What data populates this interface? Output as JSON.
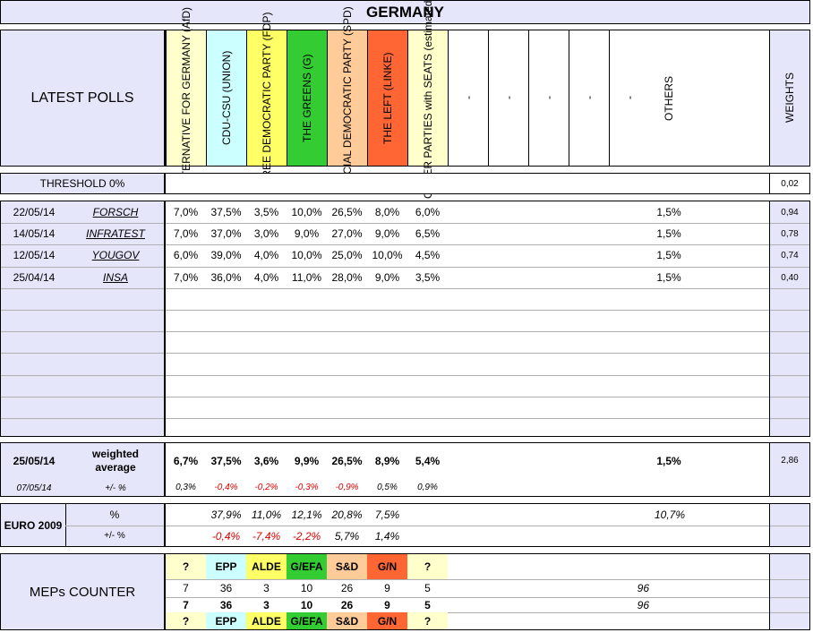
{
  "title": "GERMANY",
  "header": {
    "latest_polls_label": "LATEST POLLS",
    "parties": [
      {
        "name": "ALTERNATIVE FOR GERMANY (AfD)",
        "color": "#ffffcc"
      },
      {
        "name": "CDU-CSU (UNION)",
        "color": "#ccffff"
      },
      {
        "name": "FREE DEMOCRATIC PARTY (FDP)",
        "color": "#ffff66"
      },
      {
        "name": "THE GREENS (G)",
        "color": "#33cc33"
      },
      {
        "name": "SOCIAL DEMOCRATIC PARTY (SPD)",
        "color": "#ffcc99"
      },
      {
        "name": "THE LEFT (LINKE)",
        "color": "#ff6633"
      },
      {
        "name": "OTHER PARTIES with SEATS (estimated)",
        "color": "#ffffcc"
      },
      {
        "name": "-",
        "color": "#ffffff"
      },
      {
        "name": "-",
        "color": "#ffffff"
      },
      {
        "name": "-",
        "color": "#ffffff"
      },
      {
        "name": "-",
        "color": "#ffffff"
      },
      {
        "name": "-",
        "color": "#ffffff"
      }
    ],
    "others_label": "OTHERS",
    "weights_label": "WEIGHTS"
  },
  "threshold": {
    "label": "THRESHOLD 0%",
    "weight": "0,02"
  },
  "polls": [
    {
      "date": "22/05/14",
      "pollster": "FORSCH",
      "values": [
        "7,0%",
        "37,5%",
        "3,5%",
        "10,0%",
        "26,5%",
        "8,0%",
        "6,0%"
      ],
      "others": "1,5%",
      "weight": "0,94"
    },
    {
      "date": "14/05/14",
      "pollster": "INFRATEST",
      "values": [
        "7,0%",
        "37,0%",
        "3,0%",
        "9,0%",
        "27,0%",
        "9,0%",
        "6,5%"
      ],
      "others": "1,5%",
      "weight": "0,78"
    },
    {
      "date": "12/05/14",
      "pollster": "YOUGOV",
      "values": [
        "6,0%",
        "39,0%",
        "4,0%",
        "10,0%",
        "25,0%",
        "10,0%",
        "4,5%"
      ],
      "others": "1,5%",
      "weight": "0,74"
    },
    {
      "date": "25/04/14",
      "pollster": "INSA",
      "values": [
        "7,0%",
        "36,0%",
        "4,0%",
        "11,0%",
        "28,0%",
        "9,0%",
        "3,5%"
      ],
      "others": "1,5%",
      "weight": "0,40"
    }
  ],
  "weighted": {
    "date": "25/05/14",
    "label": "weighted average",
    "values": [
      "6,7%",
      "37,5%",
      "3,6%",
      "9,9%",
      "26,5%",
      "8,9%",
      "5,4%"
    ],
    "others": "1,5%",
    "weight": "2,86",
    "change_date": "07/05/14",
    "change_label": "+/- %",
    "changes": [
      {
        "v": "0,3%",
        "neg": false
      },
      {
        "v": "-0,4%",
        "neg": true
      },
      {
        "v": "-0,2%",
        "neg": true
      },
      {
        "v": "-0,3%",
        "neg": true
      },
      {
        "v": "-0,9%",
        "neg": true
      },
      {
        "v": "0,5%",
        "neg": false
      },
      {
        "v": "0,9%",
        "neg": false
      }
    ]
  },
  "euro2009": {
    "label": "EURO 2009",
    "pct_label": "%",
    "values": [
      "",
      "37,9%",
      "11,0%",
      "12,1%",
      "20,8%",
      "7,5%",
      ""
    ],
    "others": "10,7%",
    "diff_label": "+/- %",
    "diffs": [
      {
        "v": "",
        "neg": false
      },
      {
        "v": "-0,4%",
        "neg": true
      },
      {
        "v": "-7,4%",
        "neg": true
      },
      {
        "v": "-2,2%",
        "neg": true
      },
      {
        "v": "5,7%",
        "neg": false
      },
      {
        "v": "1,4%",
        "neg": false
      },
      {
        "v": "",
        "neg": false
      }
    ]
  },
  "meps": {
    "label": "MEPs COUNTER",
    "groups": [
      {
        "name": "?",
        "color": "#ffffcc"
      },
      {
        "name": "EPP",
        "color": "#ccffff"
      },
      {
        "name": "ALDE",
        "color": "#ffff66"
      },
      {
        "name": "G/EFA",
        "color": "#33cc33"
      },
      {
        "name": "S&D",
        "color": "#ffcc99"
      },
      {
        "name": "G/N",
        "color": "#ff6633"
      },
      {
        "name": "?",
        "color": "#ffffcc"
      }
    ],
    "row1": [
      "7",
      "36",
      "3",
      "10",
      "26",
      "9",
      "5"
    ],
    "row1_total": "96",
    "row2": [
      "7",
      "36",
      "3",
      "10",
      "26",
      "9",
      "5"
    ],
    "row2_total": "96"
  }
}
